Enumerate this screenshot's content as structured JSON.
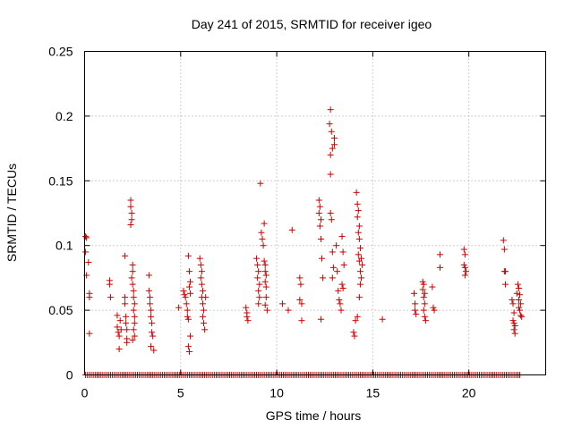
{
  "chart_data": {
    "type": "scatter",
    "title": "Day 241 of 2015, SRMTID for receiver igeo",
    "xlabel": "GPS time / hours",
    "ylabel": "SRMTID / TECUs",
    "xlim": [
      0,
      24
    ],
    "ylim": [
      0,
      0.25
    ],
    "xticks": [
      0,
      5,
      10,
      15,
      20
    ],
    "xtick_labels": [
      "0",
      "5",
      "10",
      "15",
      "20"
    ],
    "yticks": [
      0,
      0.05,
      0.1,
      0.15,
      0.2,
      0.25
    ],
    "ytick_labels": [
      "0",
      "0.05",
      "0.1",
      "0.15",
      "0.2",
      "0.25"
    ],
    "grid": true,
    "marker": "+",
    "color": "#cc0000",
    "zero_baseline": {
      "y": 0,
      "x_start": 0.05,
      "x_end": 22.7,
      "step": 0.1
    },
    "series": [
      {
        "name": "SRMTID",
        "points": [
          [
            0.05,
            0.107
          ],
          [
            0.05,
            0.095
          ],
          [
            0.1,
            0.106
          ],
          [
            0.1,
            0.077
          ],
          [
            0.2,
            0.087
          ],
          [
            0.25,
            0.063
          ],
          [
            0.25,
            0.06
          ],
          [
            0.25,
            0.032
          ],
          [
            1.3,
            0.073
          ],
          [
            1.3,
            0.07
          ],
          [
            1.35,
            0.06
          ],
          [
            1.7,
            0.046
          ],
          [
            1.7,
            0.037
          ],
          [
            1.75,
            0.033
          ],
          [
            1.8,
            0.03
          ],
          [
            1.8,
            0.02
          ],
          [
            1.85,
            0.042
          ],
          [
            1.9,
            0.035
          ],
          [
            2.1,
            0.092
          ],
          [
            2.1,
            0.06
          ],
          [
            2.1,
            0.055
          ],
          [
            2.15,
            0.045
          ],
          [
            2.15,
            0.04
          ],
          [
            2.2,
            0.035
          ],
          [
            2.2,
            0.028
          ],
          [
            2.2,
            0.025
          ],
          [
            2.4,
            0.135
          ],
          [
            2.4,
            0.13
          ],
          [
            2.45,
            0.125
          ],
          [
            2.45,
            0.12
          ],
          [
            2.4,
            0.116
          ],
          [
            2.5,
            0.085
          ],
          [
            2.5,
            0.08
          ],
          [
            2.45,
            0.075
          ],
          [
            2.5,
            0.07
          ],
          [
            2.55,
            0.065
          ],
          [
            2.55,
            0.06
          ],
          [
            2.6,
            0.055
          ],
          [
            2.55,
            0.05
          ],
          [
            2.6,
            0.045
          ],
          [
            2.6,
            0.04
          ],
          [
            2.55,
            0.035
          ],
          [
            2.6,
            0.03
          ],
          [
            2.5,
            0.027
          ],
          [
            3.35,
            0.077
          ],
          [
            3.35,
            0.065
          ],
          [
            3.4,
            0.06
          ],
          [
            3.4,
            0.055
          ],
          [
            3.45,
            0.05
          ],
          [
            3.45,
            0.045
          ],
          [
            3.5,
            0.04
          ],
          [
            3.5,
            0.033
          ],
          [
            3.55,
            0.03
          ],
          [
            3.45,
            0.022
          ],
          [
            3.6,
            0.019
          ],
          [
            4.9,
            0.052
          ],
          [
            5.15,
            0.065
          ],
          [
            5.2,
            0.062
          ],
          [
            5.25,
            0.06
          ],
          [
            5.3,
            0.055
          ],
          [
            5.35,
            0.05
          ],
          [
            5.35,
            0.045
          ],
          [
            5.4,
            0.043
          ],
          [
            5.4,
            0.092
          ],
          [
            5.45,
            0.08
          ],
          [
            5.5,
            0.072
          ],
          [
            5.45,
            0.068
          ],
          [
            5.5,
            0.063
          ],
          [
            5.4,
            0.022
          ],
          [
            5.45,
            0.018
          ],
          [
            5.5,
            0.03
          ],
          [
            6.0,
            0.09
          ],
          [
            6.05,
            0.085
          ],
          [
            6.1,
            0.08
          ],
          [
            6.05,
            0.075
          ],
          [
            6.1,
            0.07
          ],
          [
            6.15,
            0.065
          ],
          [
            6.1,
            0.06
          ],
          [
            6.15,
            0.055
          ],
          [
            6.2,
            0.05
          ],
          [
            6.15,
            0.045
          ],
          [
            6.2,
            0.04
          ],
          [
            6.25,
            0.035
          ],
          [
            6.3,
            0.06
          ],
          [
            8.4,
            0.052
          ],
          [
            8.45,
            0.048
          ],
          [
            8.45,
            0.045
          ],
          [
            8.5,
            0.042
          ],
          [
            8.95,
            0.09
          ],
          [
            9.0,
            0.085
          ],
          [
            9.05,
            0.08
          ],
          [
            9.0,
            0.075
          ],
          [
            9.1,
            0.07
          ],
          [
            9.05,
            0.065
          ],
          [
            9.1,
            0.06
          ],
          [
            9.05,
            0.055
          ],
          [
            9.15,
            0.148
          ],
          [
            9.2,
            0.11
          ],
          [
            9.25,
            0.105
          ],
          [
            9.3,
            0.1
          ],
          [
            9.35,
            0.117
          ],
          [
            9.35,
            0.088
          ],
          [
            9.4,
            0.085
          ],
          [
            9.4,
            0.08
          ],
          [
            9.45,
            0.077
          ],
          [
            9.4,
            0.072
          ],
          [
            9.45,
            0.068
          ],
          [
            9.45,
            0.06
          ],
          [
            9.4,
            0.054
          ],
          [
            9.5,
            0.05
          ],
          [
            10.3,
            0.055
          ],
          [
            10.6,
            0.05
          ],
          [
            10.8,
            0.112
          ],
          [
            11.2,
            0.075
          ],
          [
            11.25,
            0.07
          ],
          [
            11.2,
            0.058
          ],
          [
            11.3,
            0.055
          ],
          [
            11.3,
            0.042
          ],
          [
            12.2,
            0.135
          ],
          [
            12.25,
            0.13
          ],
          [
            12.2,
            0.125
          ],
          [
            12.3,
            0.12
          ],
          [
            12.25,
            0.115
          ],
          [
            12.3,
            0.105
          ],
          [
            12.35,
            0.09
          ],
          [
            12.4,
            0.075
          ],
          [
            12.3,
            0.043
          ],
          [
            12.8,
            0.205
          ],
          [
            12.75,
            0.194
          ],
          [
            12.85,
            0.188
          ],
          [
            13.0,
            0.183
          ],
          [
            13.0,
            0.178
          ],
          [
            12.9,
            0.175
          ],
          [
            12.8,
            0.17
          ],
          [
            12.8,
            0.155
          ],
          [
            12.8,
            0.125
          ],
          [
            12.85,
            0.12
          ],
          [
            12.9,
            0.095
          ],
          [
            12.95,
            0.083
          ],
          [
            12.9,
            0.075
          ],
          [
            13.1,
            0.1
          ],
          [
            13.15,
            0.08
          ],
          [
            13.2,
            0.065
          ],
          [
            13.25,
            0.058
          ],
          [
            13.3,
            0.055
          ],
          [
            13.35,
            0.05
          ],
          [
            13.4,
            0.107
          ],
          [
            13.45,
            0.095
          ],
          [
            13.5,
            0.085
          ],
          [
            13.4,
            0.07
          ],
          [
            13.45,
            0.067
          ],
          [
            14.15,
            0.141
          ],
          [
            14.2,
            0.132
          ],
          [
            14.25,
            0.127
          ],
          [
            14.2,
            0.122
          ],
          [
            14.3,
            0.115
          ],
          [
            14.25,
            0.11
          ],
          [
            14.3,
            0.105
          ],
          [
            14.35,
            0.098
          ],
          [
            14.25,
            0.093
          ],
          [
            14.3,
            0.088
          ],
          [
            14.35,
            0.08
          ],
          [
            14.4,
            0.075
          ],
          [
            14.35,
            0.07
          ],
          [
            14.3,
            0.06
          ],
          [
            14.4,
            0.09
          ],
          [
            14.45,
            0.085
          ],
          [
            14.1,
            0.042
          ],
          [
            14.0,
            0.033
          ],
          [
            14.05,
            0.03
          ],
          [
            14.2,
            0.045
          ],
          [
            15.5,
            0.043
          ],
          [
            17.15,
            0.063
          ],
          [
            17.2,
            0.055
          ],
          [
            17.2,
            0.05
          ],
          [
            17.25,
            0.047
          ],
          [
            17.6,
            0.072
          ],
          [
            17.65,
            0.07
          ],
          [
            17.6,
            0.066
          ],
          [
            17.7,
            0.063
          ],
          [
            17.65,
            0.06
          ],
          [
            17.7,
            0.055
          ],
          [
            17.65,
            0.05
          ],
          [
            17.7,
            0.045
          ],
          [
            17.75,
            0.042
          ],
          [
            18.1,
            0.068
          ],
          [
            18.15,
            0.052
          ],
          [
            18.2,
            0.05
          ],
          [
            18.5,
            0.093
          ],
          [
            18.5,
            0.083
          ],
          [
            19.75,
            0.097
          ],
          [
            19.8,
            0.093
          ],
          [
            19.75,
            0.085
          ],
          [
            19.8,
            0.083
          ],
          [
            19.85,
            0.08
          ],
          [
            19.8,
            0.077
          ],
          [
            21.8,
            0.104
          ],
          [
            21.85,
            0.097
          ],
          [
            21.85,
            0.08
          ],
          [
            21.9,
            0.08
          ],
          [
            21.9,
            0.07
          ],
          [
            22.25,
            0.058
          ],
          [
            22.3,
            0.055
          ],
          [
            22.35,
            0.048
          ],
          [
            22.3,
            0.042
          ],
          [
            22.35,
            0.04
          ],
          [
            22.4,
            0.038
          ],
          [
            22.35,
            0.035
          ],
          [
            22.4,
            0.032
          ],
          [
            22.55,
            0.07
          ],
          [
            22.6,
            0.067
          ],
          [
            22.65,
            0.062
          ],
          [
            22.6,
            0.058
          ],
          [
            22.7,
            0.055
          ],
          [
            22.65,
            0.05
          ],
          [
            22.7,
            0.046
          ],
          [
            22.75,
            0.045
          ],
          [
            22.6,
            0.052
          ],
          [
            22.5,
            0.063
          ]
        ]
      }
    ]
  }
}
